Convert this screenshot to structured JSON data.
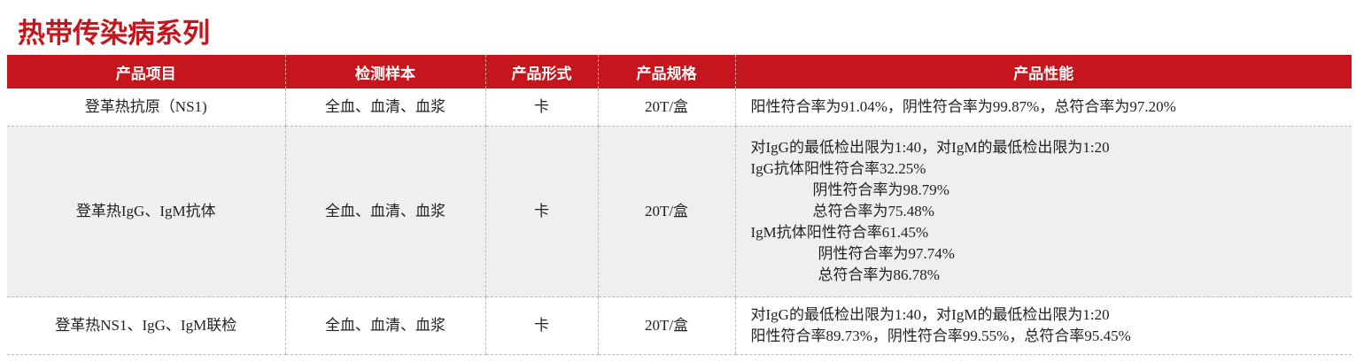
{
  "title": "热带传染病系列",
  "headers": [
    "产品项目",
    "检测样本",
    "产品形式",
    "产品规格",
    "产品性能"
  ],
  "rows": [
    {
      "item": "登革热抗原（NS1)",
      "sample": "全血、血清、血浆",
      "form": "卡",
      "spec": "20T/盒",
      "performance": [
        "阳性符合率为91.04%，阴性符合率为99.87%，总符合率为97.20%"
      ]
    },
    {
      "item": "登革热IgG、IgM抗体",
      "sample": "全血、血清、血浆",
      "form": "卡",
      "spec": "20T/盒",
      "performance": [
        "对IgG的最低检出限为1:40，对IgM的最低检出限为1:20",
        "IgG抗体阳性符合率32.25%",
        "阴性符合率为98.79%",
        "总符合率为75.48%",
        "IgM抗体阳性符合率61.45%",
        "阴性符合率为97.74%",
        "总符合率为86.78%"
      ]
    },
    {
      "item": "登革热NS1、IgG、IgM联检",
      "sample": "全血、血清、血浆",
      "form": "卡",
      "spec": "20T/盒",
      "performance": [
        "对IgG的最低检出限为1:40，对IgM的最低检出限为1:20",
        "阳性符合率89.73%，阴性符合率99.55%，总符合率95.45%"
      ]
    }
  ],
  "colors": {
    "accent": "#c4161c",
    "row_alt": "#eef0ef"
  }
}
